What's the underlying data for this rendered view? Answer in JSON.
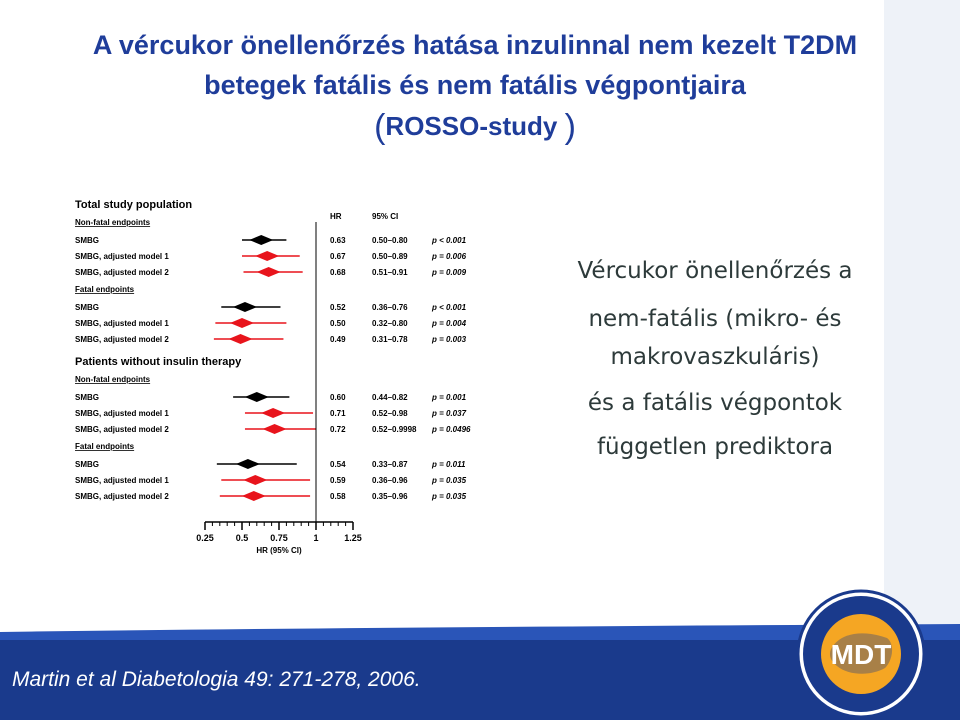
{
  "header": {
    "title_line1": "A vércukor önellenőrzés hatása inzulinnal nem kezelt T2DM",
    "title_line2": "betegek fatális és nem fatális végpontjaira",
    "subtitle_open": "(",
    "subtitle_text": "ROSSO-study",
    "subtitle_close": ")"
  },
  "side_text": {
    "line1": "Vércukor önellenőrzés a",
    "line2": "nem-fatális (mikro- és",
    "line3": "makrovaszkuláris)",
    "line4": "és a fatális végpontok",
    "line5": "független prediktora"
  },
  "citation": "Martin et al Diabetologia 49: 271-278, 2006.",
  "logo": {
    "text": "MDT",
    "ring_text_top": "MAGYAR DIABETES TÁRSASÁG",
    "ring_text_bottom": "HUNGARIAN DIABETES ASSOCIATION"
  },
  "colors": {
    "accent_blue": "#1f3d9a",
    "footer_blue": "#1a3a8c",
    "marker_red": "#e8141c",
    "marker_black": "#000000",
    "logo_orange": "#f5a623"
  },
  "chart_data": {
    "type": "forest",
    "column_headers": {
      "hr": "HR",
      "ci": "95% CI"
    },
    "xaxis": {
      "label": "HR (95% CI)",
      "ticks": [
        "0.25",
        "0.5",
        "0.75",
        "1",
        "1.25"
      ],
      "range": [
        0.25,
        1.25
      ],
      "reference_line": 1
    },
    "sections": [
      {
        "title": "Total study population",
        "groups": [
          {
            "name": "Non-fatal endpoints",
            "rows": [
              {
                "label": "SMBG",
                "hr": 0.63,
                "lo": 0.5,
                "hi": 0.8,
                "hr_text": "0.63",
                "ci_text": "0.50–0.80",
                "p_text": "p < 0.001",
                "color": "black"
              },
              {
                "label": "SMBG, adjusted model 1",
                "hr": 0.67,
                "lo": 0.5,
                "hi": 0.89,
                "hr_text": "0.67",
                "ci_text": "0.50–0.89",
                "p_text": "p = 0.006",
                "color": "red"
              },
              {
                "label": "SMBG, adjusted model 2",
                "hr": 0.68,
                "lo": 0.51,
                "hi": 0.91,
                "hr_text": "0.68",
                "ci_text": "0.51–0.91",
                "p_text": "p = 0.009",
                "color": "red"
              }
            ]
          },
          {
            "name": "Fatal endpoints",
            "rows": [
              {
                "label": "SMBG",
                "hr": 0.52,
                "lo": 0.36,
                "hi": 0.76,
                "hr_text": "0.52",
                "ci_text": "0.36–0.76",
                "p_text": "p < 0.001",
                "color": "black"
              },
              {
                "label": "SMBG, adjusted model 1",
                "hr": 0.5,
                "lo": 0.32,
                "hi": 0.8,
                "hr_text": "0.50",
                "ci_text": "0.32–0.80",
                "p_text": "p = 0.004",
                "color": "red"
              },
              {
                "label": "SMBG, adjusted model 2",
                "hr": 0.49,
                "lo": 0.31,
                "hi": 0.78,
                "hr_text": "0.49",
                "ci_text": "0.31–0.78",
                "p_text": "p = 0.003",
                "color": "red"
              }
            ]
          }
        ]
      },
      {
        "title": "Patients without insulin therapy",
        "groups": [
          {
            "name": "Non-fatal endpoints",
            "rows": [
              {
                "label": "SMBG",
                "hr": 0.6,
                "lo": 0.44,
                "hi": 0.82,
                "hr_text": "0.60",
                "ci_text": "0.44–0.82",
                "p_text": "p = 0.001",
                "color": "black"
              },
              {
                "label": "SMBG, adjusted model 1",
                "hr": 0.71,
                "lo": 0.52,
                "hi": 0.98,
                "hr_text": "0.71",
                "ci_text": "0.52–0.98",
                "p_text": "p = 0.037",
                "color": "red"
              },
              {
                "label": "SMBG, adjusted model 2",
                "hr": 0.72,
                "lo": 0.52,
                "hi": 0.9998,
                "hr_text": "0.72",
                "ci_text": "0.52–0.9998",
                "p_text": "p = 0.0496",
                "color": "red"
              }
            ]
          },
          {
            "name": "Fatal endpoints",
            "rows": [
              {
                "label": "SMBG",
                "hr": 0.54,
                "lo": 0.33,
                "hi": 0.87,
                "hr_text": "0.54",
                "ci_text": "0.33–0.87",
                "p_text": "p = 0.011",
                "color": "black"
              },
              {
                "label": "SMBG, adjusted model 1",
                "hr": 0.59,
                "lo": 0.36,
                "hi": 0.96,
                "hr_text": "0.59",
                "ci_text": "0.36–0.96",
                "p_text": "p = 0.035",
                "color": "red"
              },
              {
                "label": "SMBG, adjusted model 2",
                "hr": 0.58,
                "lo": 0.35,
                "hi": 0.96,
                "hr_text": "0.58",
                "ci_text": "0.35–0.96",
                "p_text": "p = 0.035",
                "color": "red"
              }
            ]
          }
        ]
      }
    ]
  }
}
